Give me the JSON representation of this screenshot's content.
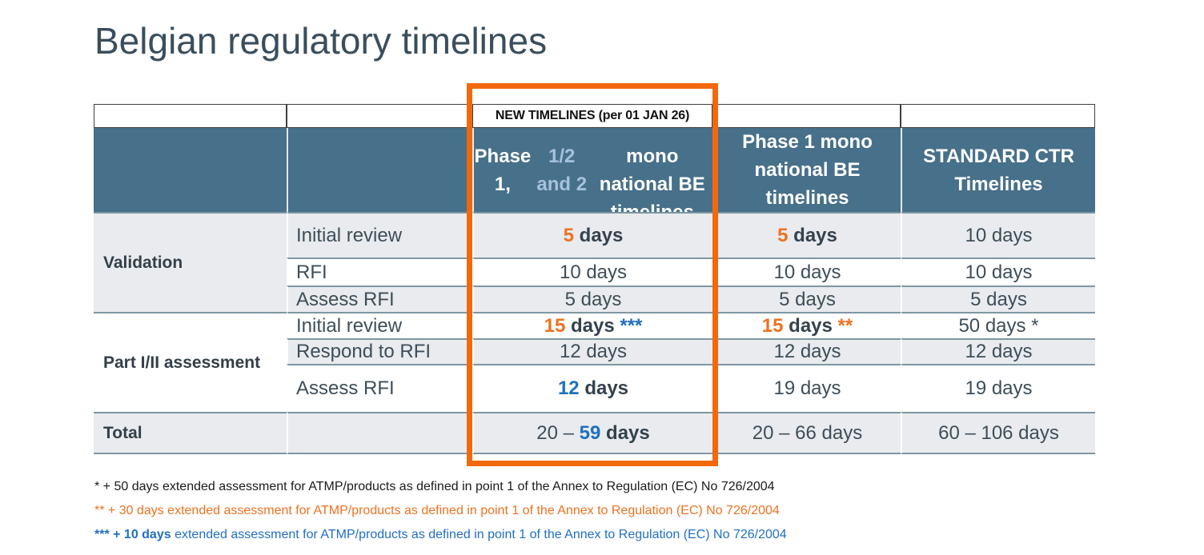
{
  "title": "Belgian regulatory timelines",
  "colors": {
    "header_bg": "#47708A",
    "row_alt_bg": "#E9EBEE",
    "accent_orange": "#ED7220",
    "accent_blue": "#1F70C1",
    "accent_light_blue": "#A6C2DC",
    "text_dark": "#3E4E59",
    "highlight_border": "#F2690D"
  },
  "table": {
    "banner": "NEW TIMELINES (per 01 JAN 26)",
    "col_headers": [
      {
        "rich": [
          {
            "t": "Phase 1,"
          },
          {
            "t": "1/2 and 2",
            "s": "lb"
          },
          {
            "t": "\nmono national BE\ntimelines"
          }
        ]
      },
      {
        "rich": [
          {
            "t": "Phase 1 mono\nnational BE\ntimelines"
          }
        ]
      },
      {
        "rich": [
          {
            "t": "STANDARD CTR\nTimelines"
          }
        ]
      }
    ],
    "sections": [
      {
        "label": "Validation",
        "rows": [
          {
            "step": "Initial review",
            "cells": [
              [
                {
                  "t": "5 ",
                  "s": "ob"
                },
                {
                  "t": "days",
                  "s": "b"
                }
              ],
              [
                {
                  "t": "5 ",
                  "s": "ob"
                },
                {
                  "t": "days",
                  "s": "b"
                }
              ],
              [
                {
                  "t": "10 days"
                }
              ]
            ]
          },
          {
            "step": "RFI",
            "cells": [
              [
                {
                  "t": "10 days"
                }
              ],
              [
                {
                  "t": "10 days"
                }
              ],
              [
                {
                  "t": "10 days"
                }
              ]
            ]
          },
          {
            "step": "Assess RFI",
            "cells": [
              [
                {
                  "t": "5 days"
                }
              ],
              [
                {
                  "t": "5 days"
                }
              ],
              [
                {
                  "t": "5 days"
                }
              ]
            ]
          }
        ]
      },
      {
        "label": "Part I/II assessment",
        "rows": [
          {
            "step": "Initial review",
            "cells": [
              [
                {
                  "t": "15 ",
                  "s": "ob"
                },
                {
                  "t": "days ",
                  "s": "b"
                },
                {
                  "t": "***",
                  "s": "blb"
                }
              ],
              [
                {
                  "t": "15 ",
                  "s": "ob"
                },
                {
                  "t": "days ",
                  "s": "b"
                },
                {
                  "t": "**",
                  "s": "ob"
                }
              ],
              [
                {
                  "t": "50 days *"
                }
              ]
            ]
          },
          {
            "step": "Respond to RFI",
            "cells": [
              [
                {
                  "t": "12 days"
                }
              ],
              [
                {
                  "t": "12 days"
                }
              ],
              [
                {
                  "t": "12 days"
                }
              ]
            ]
          },
          {
            "step": "Assess RFI",
            "cells": [
              [
                {
                  "t": "12 ",
                  "s": "blb"
                },
                {
                  "t": "days",
                  "s": "b"
                }
              ],
              [
                {
                  "t": "19 days"
                }
              ],
              [
                {
                  "t": "19 days"
                }
              ]
            ]
          }
        ]
      }
    ],
    "total": {
      "label": "Total",
      "cells": [
        [
          {
            "t": "20 – "
          },
          {
            "t": "59 ",
            "s": "blb"
          },
          {
            "t": "days",
            "s": "b"
          }
        ],
        [
          {
            "t": "20 – 66 days"
          }
        ],
        [
          {
            "t": "60 – 106 days"
          }
        ]
      ]
    }
  },
  "footnotes": [
    {
      "segments": [
        {
          "t": "* + 50 days extended assessment for ATMP/products as defined in point 1 of the Annex to Regulation (EC) No 726/2004"
        }
      ]
    },
    {
      "segments": [
        {
          "t": "** + 30 days extended assessment for ATMP/products as defined in point 1 of the Annex to Regulation (EC) No 726/2004"
        }
      ]
    },
    {
      "segments": [
        {
          "t": "*** + 10 days",
          "s": "bold"
        },
        {
          "t": " extended assessment for ATMP/products as defined in point 1 of the Annex to Regulation (EC) No 726/2004"
        }
      ]
    }
  ]
}
